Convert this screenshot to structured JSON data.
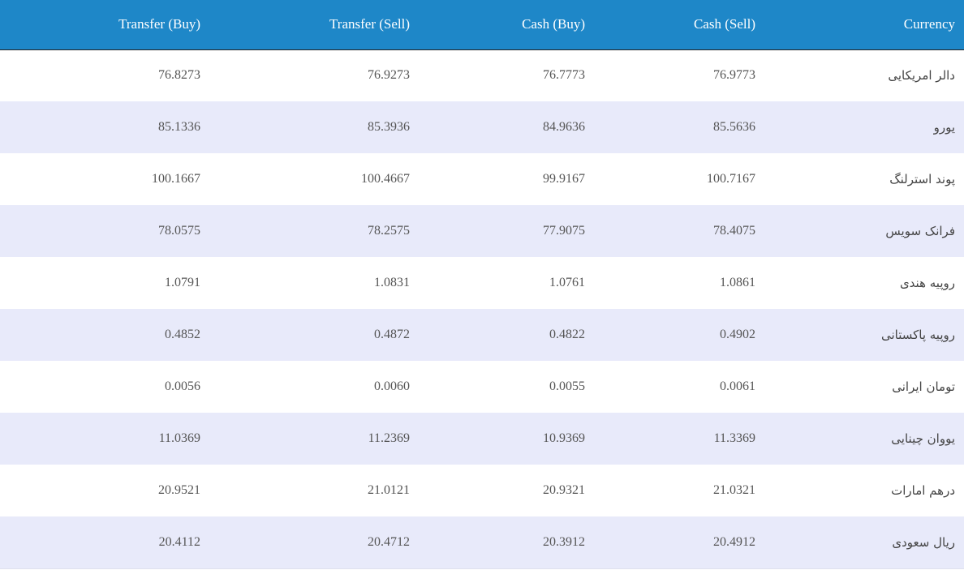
{
  "table": {
    "headers": [
      "Transfer (Buy)",
      "Transfer (Sell)",
      "Cash (Buy)",
      "Cash (Sell)",
      "Currency"
    ],
    "rows": [
      {
        "transfer_buy": "76.8273",
        "transfer_sell": "76.9273",
        "cash_buy": "76.7773",
        "cash_sell": "76.9773",
        "currency": "دالر امریکایی"
      },
      {
        "transfer_buy": "85.1336",
        "transfer_sell": "85.3936",
        "cash_buy": "84.9636",
        "cash_sell": "85.5636",
        "currency": "یورو"
      },
      {
        "transfer_buy": "100.1667",
        "transfer_sell": "100.4667",
        "cash_buy": "99.9167",
        "cash_sell": "100.7167",
        "currency": "پوند استرلنگ"
      },
      {
        "transfer_buy": "78.0575",
        "transfer_sell": "78.2575",
        "cash_buy": "77.9075",
        "cash_sell": "78.4075",
        "currency": "فرانک سویس"
      },
      {
        "transfer_buy": "1.0791",
        "transfer_sell": "1.0831",
        "cash_buy": "1.0761",
        "cash_sell": "1.0861",
        "currency": "روپیه هندی"
      },
      {
        "transfer_buy": "0.4852",
        "transfer_sell": "0.4872",
        "cash_buy": "0.4822",
        "cash_sell": "0.4902",
        "currency": "روپیه پاکستانی"
      },
      {
        "transfer_buy": "0.0056",
        "transfer_sell": "0.0060",
        "cash_buy": "0.0055",
        "cash_sell": "0.0061",
        "currency": "تومان ایرانی"
      },
      {
        "transfer_buy": "11.0369",
        "transfer_sell": "11.2369",
        "cash_buy": "10.9369",
        "cash_sell": "11.3369",
        "currency": "یووان چینایی"
      },
      {
        "transfer_buy": "20.9521",
        "transfer_sell": "21.0121",
        "cash_buy": "20.9321",
        "cash_sell": "21.0321",
        "currency": "درهم امارات"
      },
      {
        "transfer_buy": "20.4112",
        "transfer_sell": "20.4712",
        "cash_buy": "20.3912",
        "cash_sell": "20.4912",
        "currency": "ریال سعودی"
      }
    ]
  },
  "colors": {
    "header_bg": "#1e87c8",
    "header_text": "#ffffff",
    "row_alt_bg": "#e8eafa",
    "row_bg": "#ffffff",
    "cell_text": "#555555"
  }
}
